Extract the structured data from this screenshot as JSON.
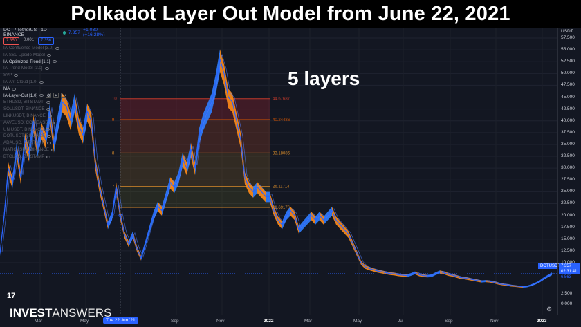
{
  "banner": {
    "title": "Polkadot Layer Out Model from June 22, 2021"
  },
  "annotation": {
    "text": "5 layers"
  },
  "symbol": {
    "name": "DOT / TetherUS · 1D · BINANCE",
    "last": "7.357",
    "change": "+1.030 (+16.28%)"
  },
  "prices": {
    "sell": "7.350",
    "spread": "0.001",
    "buy": "7.356"
  },
  "indicators": [
    {
      "name": "IA-Confluence-Model [3.0]",
      "active": false
    },
    {
      "name": "IA-SSL-Upside-Model",
      "active": false
    },
    {
      "name": "IA-Optimized-Trend [1.1]",
      "active": true
    },
    {
      "name": "IA-Trend-Model [3.0]",
      "active": false
    },
    {
      "name": "SVP",
      "active": false
    },
    {
      "name": "IA-Ant-Cloud [1.0]",
      "active": false
    },
    {
      "name": "MA",
      "active": true
    },
    {
      "name": "IA-Layer-Out [1.0]",
      "active": true
    },
    {
      "name": "ETHUSD, BITSTAMP",
      "active": false
    },
    {
      "name": "SOLUSDT, BINANCE",
      "active": false
    },
    {
      "name": "LINKUSDT, BINANCE",
      "active": false
    },
    {
      "name": "AAVEUSD, COINBASE",
      "active": false
    },
    {
      "name": "UNIUSDT, BINANCE",
      "active": false
    },
    {
      "name": "DOTUSDT, BINANCE",
      "active": false
    },
    {
      "name": "ADAUSD, BITSTAMP",
      "active": false
    },
    {
      "name": "MATICUSDT, BINANCE",
      "active": false
    },
    {
      "name": "BTCUSD, BITSTAMP",
      "active": false
    }
  ],
  "yaxis": {
    "currency": "USDT",
    "ticks": [
      "57.500",
      "55.000",
      "52.500",
      "50.000",
      "47.500",
      "45.000",
      "42.500",
      "40.000",
      "37.500",
      "35.000",
      "32.500",
      "30.000",
      "27.500",
      "25.000",
      "22.500",
      "20.000",
      "17.500",
      "15.000",
      "12.500",
      "10.000",
      "2.500",
      "0.000"
    ],
    "main_ticks": [
      57.5,
      55,
      52.5,
      50,
      47.5,
      45,
      42.5,
      40,
      37.5,
      35,
      32.5,
      30,
      27.5,
      25,
      22.5,
      20,
      17.5,
      15,
      12.5,
      10
    ]
  },
  "tags": {
    "symbol": "DOTUSDT",
    "price": "7.357",
    "time": "02:31:41",
    "low": "6.563"
  },
  "xaxis": {
    "labels": [
      "Mar",
      "May",
      "Sep",
      "Nov",
      "2022",
      "Mar",
      "May",
      "Jul",
      "Sep",
      "Nov",
      "2023"
    ],
    "highlight": "Tue 22 Jun '21"
  },
  "layers": [
    {
      "index": "10",
      "price": "44.67687"
    },
    {
      "index": "9",
      "price": "40.24486"
    },
    {
      "index": "8",
      "price": "33.18086"
    },
    {
      "index": "7",
      "price": "26.11714"
    },
    {
      "index": "",
      "price": "21.69176"
    }
  ],
  "logo": {
    "word1": "INVEST",
    "word2": "ANSWERS",
    "tv": "17"
  },
  "colors": {
    "price": "#2962ff",
    "band_up": "#2f7dff",
    "band_down": "#ff8c1a",
    "level": "#d68a2a",
    "bg": "#131722"
  },
  "chart_data": {
    "type": "line",
    "series_points": [
      [
        0,
        12
      ],
      [
        6,
        20
      ],
      [
        12,
        30
      ],
      [
        18,
        27
      ],
      [
        24,
        34
      ],
      [
        30,
        28
      ],
      [
        36,
        36
      ],
      [
        42,
        33
      ],
      [
        48,
        40
      ],
      [
        54,
        34
      ],
      [
        60,
        38
      ],
      [
        66,
        36
      ],
      [
        72,
        42
      ],
      [
        78,
        35
      ],
      [
        84,
        40
      ],
      [
        90,
        44
      ],
      [
        96,
        43
      ],
      [
        102,
        40
      ],
      [
        108,
        44
      ],
      [
        114,
        39
      ],
      [
        120,
        37
      ],
      [
        126,
        42
      ],
      [
        132,
        40
      ],
      [
        138,
        31
      ],
      [
        144,
        26
      ],
      [
        150,
        22
      ],
      [
        156,
        18
      ],
      [
        162,
        20
      ],
      [
        168,
        26
      ],
      [
        174,
        20
      ],
      [
        180,
        16
      ],
      [
        186,
        14
      ],
      [
        192,
        16
      ],
      [
        198,
        13
      ],
      [
        204,
        11
      ],
      [
        210,
        14
      ],
      [
        216,
        17
      ],
      [
        222,
        20
      ],
      [
        228,
        22
      ],
      [
        234,
        21
      ],
      [
        240,
        24
      ],
      [
        246,
        27
      ],
      [
        252,
        26
      ],
      [
        258,
        28
      ],
      [
        264,
        32
      ],
      [
        270,
        30
      ],
      [
        276,
        34
      ],
      [
        282,
        30
      ],
      [
        288,
        37
      ],
      [
        294,
        40
      ],
      [
        300,
        42
      ],
      [
        306,
        44
      ],
      [
        312,
        48
      ],
      [
        318,
        53
      ],
      [
        324,
        50
      ],
      [
        330,
        45
      ],
      [
        336,
        44
      ],
      [
        342,
        40
      ],
      [
        348,
        36
      ],
      [
        354,
        28
      ],
      [
        360,
        26
      ],
      [
        366,
        25
      ],
      [
        372,
        26
      ],
      [
        378,
        25
      ],
      [
        384,
        24
      ],
      [
        390,
        24
      ],
      [
        396,
        21
      ],
      [
        402,
        19
      ],
      [
        408,
        18
      ],
      [
        414,
        20
      ],
      [
        420,
        21
      ],
      [
        426,
        20
      ],
      [
        432,
        17
      ],
      [
        438,
        18
      ],
      [
        444,
        19
      ],
      [
        450,
        20
      ],
      [
        456,
        19
      ],
      [
        462,
        20
      ],
      [
        468,
        19
      ],
      [
        474,
        20
      ],
      [
        480,
        21
      ],
      [
        486,
        19
      ],
      [
        492,
        18
      ],
      [
        498,
        17
      ],
      [
        504,
        16
      ],
      [
        510,
        14
      ],
      [
        516,
        12
      ],
      [
        522,
        10
      ],
      [
        528,
        9
      ],
      [
        534,
        8.6
      ],
      [
        540,
        8.3
      ],
      [
        546,
        8
      ],
      [
        552,
        7.8
      ],
      [
        558,
        7.6
      ],
      [
        564,
        7.4
      ],
      [
        570,
        7.3
      ],
      [
        576,
        7.1
      ],
      [
        582,
        7
      ],
      [
        588,
        6.9
      ],
      [
        594,
        7.2
      ],
      [
        600,
        7.6
      ],
      [
        606,
        7.1
      ],
      [
        612,
        6.9
      ],
      [
        618,
        6.8
      ],
      [
        624,
        6.9
      ],
      [
        630,
        7.4
      ],
      [
        636,
        7.8
      ],
      [
        642,
        7.6
      ],
      [
        648,
        7.2
      ],
      [
        654,
        7
      ],
      [
        660,
        6.7
      ],
      [
        666,
        6.4
      ],
      [
        672,
        6.3
      ],
      [
        678,
        6.1
      ],
      [
        684,
        5.9
      ],
      [
        690,
        5.7
      ],
      [
        696,
        5.5
      ],
      [
        702,
        5.6
      ],
      [
        708,
        5.5
      ],
      [
        714,
        5.3
      ],
      [
        720,
        5
      ],
      [
        726,
        4.8
      ],
      [
        732,
        4.7
      ],
      [
        738,
        4.5
      ],
      [
        744,
        4.4
      ],
      [
        750,
        4.3
      ],
      [
        756,
        4.2
      ],
      [
        762,
        4.3
      ],
      [
        768,
        4.6
      ],
      [
        774,
        5
      ],
      [
        780,
        5.5
      ],
      [
        786,
        6.2
      ],
      [
        792,
        6.8
      ],
      [
        798,
        7.357
      ]
    ],
    "level_values": [
      44.67687,
      40.24486,
      33.18086,
      26.11714,
      21.69176
    ],
    "ylim": [
      0,
      57.5
    ],
    "last_price": 7.357
  }
}
